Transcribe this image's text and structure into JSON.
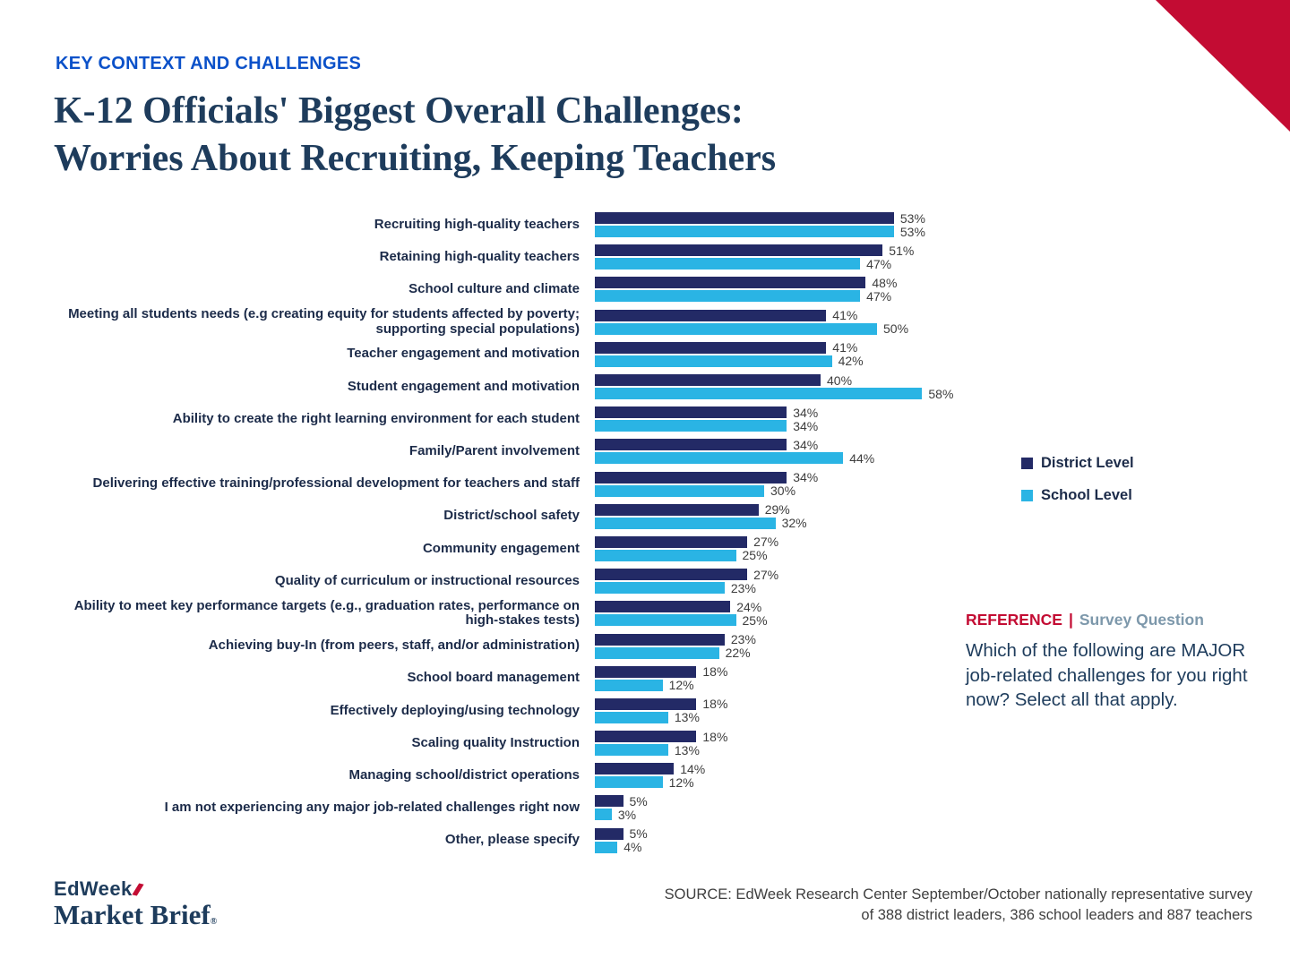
{
  "eyebrow": "KEY CONTEXT AND CHALLENGES",
  "title": {
    "line1": "K-12 Officials' Biggest Overall Challenges:",
    "line2": "Worries About Recruiting, Keeping Teachers"
  },
  "legend": {
    "district": "District Level",
    "school": "School Level"
  },
  "reference": {
    "label": "REFERENCE",
    "divider": "|",
    "sublabel": "Survey Question",
    "question": "Which of the following are MAJOR job-related challenges for you right now? Select all that apply."
  },
  "source": {
    "line1": "SOURCE:  EdWeek Research Center September/October nationally representative survey",
    "line2": "of 388 district leaders, 386 school leaders and 887 teachers"
  },
  "logo": {
    "line1": "EdWeek",
    "line2": "Market Brief",
    "reg": "®"
  },
  "colors": {
    "district_navy": "#232a66",
    "school_cyan": "#2ab4e4",
    "accent_red": "#c30c33",
    "title_navy": "#1e3c5c",
    "eyebrow_blue": "#0b51c9"
  },
  "chart_data": {
    "type": "bar",
    "orientation": "horizontal",
    "xlim": [
      0,
      60
    ],
    "unit": "%",
    "legend_position": "right",
    "categories": [
      "Recruiting high-quality teachers",
      "Retaining high-quality teachers",
      "School culture and climate",
      "Meeting all students needs (e.g creating equity for students affected by poverty; supporting special populations)",
      "Teacher engagement and motivation",
      "Student engagement and motivation",
      "Ability to create the right learning environment for each student",
      "Family/Parent involvement",
      "Delivering effective training/professional development for teachers and staff",
      "District/school safety",
      "Community engagement",
      "Quality of curriculum or instructional resources",
      "Ability to meet key performance targets (e.g., graduation rates, performance on high-stakes tests)",
      "Achieving buy-In (from peers, staff, and/or administration)",
      "School board management",
      "Effectively deploying/using technology",
      "Scaling quality Instruction",
      "Managing school/district operations",
      "I am not experiencing any major job-related challenges right now",
      "Other, please specify"
    ],
    "series": [
      {
        "name": "District Level",
        "values": [
          53,
          51,
          48,
          41,
          41,
          40,
          34,
          34,
          34,
          29,
          27,
          27,
          24,
          23,
          18,
          18,
          18,
          14,
          5,
          5
        ]
      },
      {
        "name": "School Level",
        "values": [
          53,
          47,
          47,
          50,
          42,
          58,
          34,
          44,
          30,
          32,
          25,
          23,
          25,
          22,
          12,
          13,
          13,
          12,
          3,
          4
        ]
      }
    ]
  }
}
